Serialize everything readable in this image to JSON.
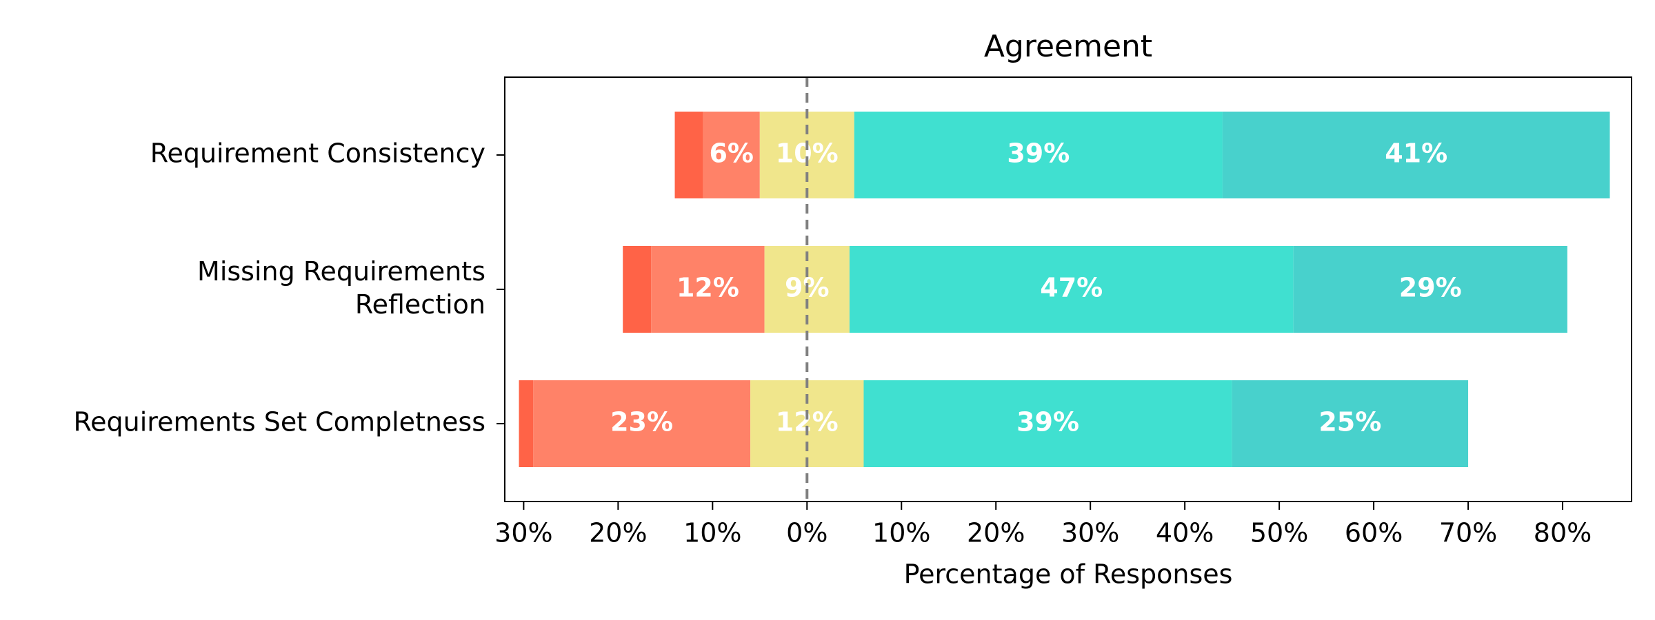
{
  "chart_data": {
    "type": "diverging-bar",
    "title": "Agreement",
    "x_label": "Percentage of Responses",
    "categories": [
      "Requirement Consistency",
      "Missing Requirements\nReflection",
      "Requirements Set Completness"
    ],
    "neutral_series": 2,
    "series": [
      {
        "color": "#ff6347",
        "values": [
          3,
          3,
          1.5
        ],
        "value_labels": [
          null,
          null,
          null
        ]
      },
      {
        "color": "#ff8268",
        "values": [
          6,
          12,
          23
        ],
        "value_labels": [
          "6%",
          "12%",
          "23%"
        ]
      },
      {
        "color": "#f0e68c",
        "values": [
          10,
          9,
          12
        ],
        "value_labels": [
          "10%",
          "9%",
          "12%"
        ]
      },
      {
        "color": "#40e0d0",
        "values": [
          39,
          47,
          39
        ],
        "value_labels": [
          "39%",
          "47%",
          "39%"
        ]
      },
      {
        "color": "#48d1cc",
        "values": [
          41,
          29,
          25
        ],
        "value_labels": [
          "41%",
          "29%",
          "25%"
        ]
      }
    ],
    "xlim": [
      -32,
      87.3
    ],
    "xticks": [
      {
        "value": -30,
        "label": "30%"
      },
      {
        "value": -20,
        "label": "20%"
      },
      {
        "value": -10,
        "label": "10%"
      },
      {
        "value": 0,
        "label": "0%"
      },
      {
        "value": 10,
        "label": "10%"
      },
      {
        "value": 20,
        "label": "20%"
      },
      {
        "value": 30,
        "label": "30%"
      },
      {
        "value": 40,
        "label": "40%"
      },
      {
        "value": 50,
        "label": "50%"
      },
      {
        "value": 60,
        "label": "60%"
      },
      {
        "value": 70,
        "label": "70%"
      },
      {
        "value": 80,
        "label": "80%"
      }
    ]
  }
}
